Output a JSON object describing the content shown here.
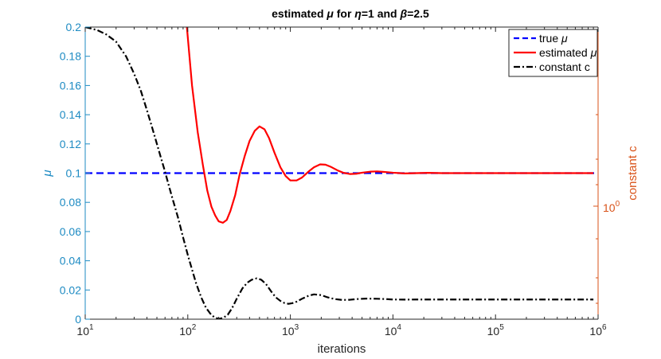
{
  "chart_data": {
    "type": "line",
    "title_parts": [
      "estimated ",
      "μ",
      " for ",
      "η",
      "=1 and ",
      "β",
      "=2.5"
    ],
    "title_italic": [
      false,
      true,
      false,
      true,
      false,
      true,
      false
    ],
    "xlabel": "iterations",
    "ylabel_left": "μ",
    "ylabel_right": "constant c",
    "x_scale": "log",
    "xlim": [
      10,
      1000000
    ],
    "ylim_left": [
      0,
      0.2
    ],
    "right_axis_scale": "log",
    "right_axis_tick_label": "10⁰",
    "x_ticks": [
      10,
      100,
      1000,
      10000,
      100000,
      1000000
    ],
    "x_tick_labels": [
      {
        "base": "10",
        "exp": "1"
      },
      {
        "base": "10",
        "exp": "2"
      },
      {
        "base": "10",
        "exp": "3"
      },
      {
        "base": "10",
        "exp": "4"
      },
      {
        "base": "10",
        "exp": "5"
      },
      {
        "base": "10",
        "exp": "6"
      }
    ],
    "y_ticks_left": [
      0,
      0.02,
      0.04,
      0.06,
      0.08,
      0.1,
      0.12,
      0.14,
      0.16,
      0.18,
      0.2
    ],
    "y_tick_labels_left": [
      "0",
      "0.02",
      "0.04",
      "0.06",
      "0.08",
      "0.1",
      "0.12",
      "0.14",
      "0.16",
      "0.18",
      "0.2"
    ],
    "grid": false,
    "legend_position": "top-right",
    "colors": {
      "left_axis": "#1e8bc3",
      "right_axis": "#d95319",
      "true_mu": "#0000ff",
      "estimated_mu": "#ff0000",
      "constant_c": "#000000"
    },
    "series": [
      {
        "name": "true μ",
        "name_parts": [
          "true ",
          "μ"
        ],
        "style": "dashed",
        "axis": "left",
        "x": [
          10,
          1000000
        ],
        "y": [
          0.1,
          0.1
        ]
      },
      {
        "name": "estimated μ",
        "name_parts": [
          "estimated ",
          "μ"
        ],
        "style": "solid",
        "axis": "left",
        "x": [
          98,
          110,
          125,
          140,
          155,
          170,
          185,
          200,
          220,
          240,
          260,
          290,
          320,
          360,
          400,
          450,
          500,
          560,
          620,
          700,
          800,
          900,
          1000,
          1150,
          1300,
          1500,
          1700,
          1950,
          2200,
          2500,
          2900,
          3300,
          3800,
          4400,
          5000,
          6000,
          7000,
          8000,
          10000,
          13000,
          17000,
          22000,
          30000,
          50000,
          100000,
          300000,
          900000
        ],
        "y": [
          0.2,
          0.16,
          0.128,
          0.106,
          0.088,
          0.077,
          0.071,
          0.067,
          0.066,
          0.068,
          0.074,
          0.085,
          0.099,
          0.112,
          0.122,
          0.129,
          0.132,
          0.13,
          0.124,
          0.114,
          0.104,
          0.098,
          0.095,
          0.095,
          0.097,
          0.101,
          0.104,
          0.106,
          0.1058,
          0.1042,
          0.1018,
          0.1002,
          0.0994,
          0.0996,
          0.1003,
          0.101,
          0.1012,
          0.1009,
          0.1003,
          0.0998,
          0.1,
          0.1002,
          0.1,
          0.1,
          0.1,
          0.1,
          0.1
        ]
      },
      {
        "name": "constant c",
        "name_parts": [
          "constant c"
        ],
        "style": "dashdot",
        "axis": "left",
        "x": [
          10,
          13,
          16,
          20,
          25,
          30,
          35,
          40,
          45,
          50,
          55,
          60,
          65,
          70,
          80,
          90,
          100,
          110,
          120,
          135,
          150,
          165,
          180,
          200,
          220,
          245,
          270,
          300,
          340,
          380,
          420,
          470,
          520,
          580,
          650,
          720,
          800,
          880,
          960,
          1050,
          1150,
          1300,
          1500,
          1700,
          2000,
          2300,
          2700,
          3200,
          3800,
          4500,
          5500,
          7000,
          8500,
          10000,
          13000,
          17000,
          23000,
          35000,
          60000,
          150000,
          400000,
          900000
        ],
        "y": [
          0.2,
          0.198,
          0.195,
          0.19,
          0.18,
          0.168,
          0.156,
          0.143,
          0.131,
          0.12,
          0.11,
          0.101,
          0.092,
          0.084,
          0.07,
          0.056,
          0.044,
          0.034,
          0.025,
          0.015,
          0.008,
          0.004,
          0.0015,
          0.0002,
          0.0008,
          0.003,
          0.0075,
          0.014,
          0.021,
          0.025,
          0.027,
          0.028,
          0.027,
          0.024,
          0.019,
          0.015,
          0.0125,
          0.011,
          0.0105,
          0.011,
          0.012,
          0.014,
          0.016,
          0.017,
          0.0165,
          0.015,
          0.0138,
          0.0132,
          0.0133,
          0.0138,
          0.0141,
          0.014,
          0.0138,
          0.0135,
          0.0134,
          0.0135,
          0.0135,
          0.0135,
          0.0135,
          0.0135,
          0.0135,
          0.0135
        ]
      }
    ]
  }
}
